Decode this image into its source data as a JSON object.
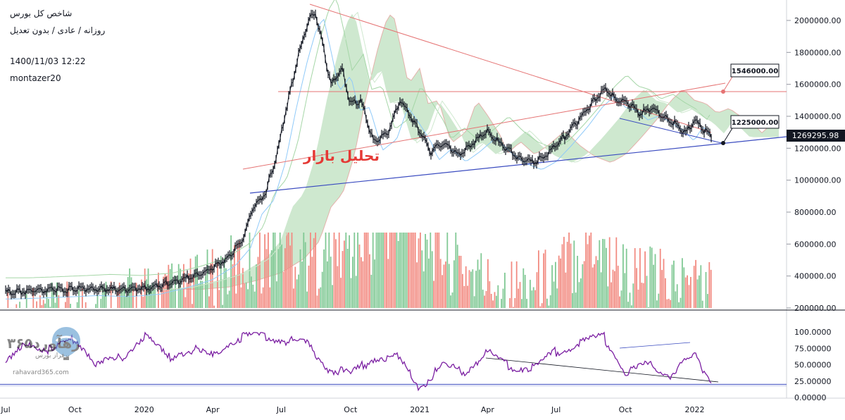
{
  "header": {
    "symbol": "شاخص کل بورس",
    "settings": "روزانه / عادی / بدون تعدیل",
    "datetime": "1400/11/03 12:22",
    "author": "montazer20"
  },
  "annotation": {
    "text": "تحلیل بازار",
    "color": "#e53935"
  },
  "watermark": {
    "name": "رهآورد۳۶۵",
    "tagline": "برفراز بورس",
    "url": "rahavard365.com"
  },
  "colors": {
    "price": "#131722",
    "trendline": "#3b4cc0",
    "resistance": "#e57373",
    "rsi": "#7b1fa2",
    "vol_up": "#81c995",
    "vol_down": "#f28b82",
    "cloud_up": "#a5d6a7",
    "cloud_down": "#f8bbd0"
  },
  "chart_data": [
    {
      "type": "line",
      "name": "price",
      "x": [
        "2019-07-01",
        "2019-08-15",
        "2019-09-20",
        "2019-10-20",
        "2019-12-01",
        "2020-01-10",
        "2020-02-15",
        "2020-03-20",
        "2020-04-20",
        "2020-05-10",
        "2020-05-25",
        "2020-06-10",
        "2020-06-25",
        "2020-07-10",
        "2020-07-25",
        "2020-08-05",
        "2020-08-15",
        "2020-08-25",
        "2020-09-05",
        "2020-09-20",
        "2020-10-01",
        "2020-10-15",
        "2020-11-01",
        "2020-11-20",
        "2020-12-05",
        "2020-12-20",
        "2021-01-05",
        "2021-01-15",
        "2021-02-01",
        "2021-02-20",
        "2021-03-10",
        "2021-04-01",
        "2021-04-20",
        "2021-05-10",
        "2021-06-01",
        "2021-06-20",
        "2021-07-10",
        "2021-08-01",
        "2021-08-20",
        "2021-09-05",
        "2021-09-20",
        "2021-10-05",
        "2021-10-20",
        "2021-11-05",
        "2021-11-20",
        "2021-12-05",
        "2021-12-20",
        "2022-01-01",
        "2022-01-10",
        "2022-01-23"
      ],
      "y": [
        300000,
        308000,
        315000,
        322000,
        315000,
        330000,
        370000,
        420000,
        510000,
        620000,
        830000,
        920000,
        1150000,
        1500000,
        1800000,
        1980000,
        2060000,
        1850000,
        1600000,
        1700000,
        1480000,
        1500000,
        1230000,
        1300000,
        1500000,
        1400000,
        1280000,
        1170000,
        1240000,
        1160000,
        1220000,
        1310000,
        1220000,
        1150000,
        1110000,
        1160000,
        1260000,
        1380000,
        1500000,
        1570000,
        1500000,
        1480000,
        1420000,
        1450000,
        1400000,
        1360000,
        1290000,
        1380000,
        1330000,
        1269295.98
      ]
    },
    {
      "type": "bar",
      "name": "volume",
      "x": [
        "2019-07-01",
        "2019-08-15",
        "2019-10-01",
        "2019-11-15",
        "2020-01-01",
        "2020-02-15",
        "2020-04-01",
        "2020-05-15",
        "2020-07-01",
        "2020-08-15",
        "2020-10-01",
        "2020-11-15",
        "2021-01-01",
        "2021-02-15",
        "2021-04-01",
        "2021-05-15",
        "2021-07-01",
        "2021-08-15",
        "2021-10-01",
        "2021-11-15",
        "2022-01-01",
        "2022-01-23"
      ],
      "values": [
        240000,
        250000,
        260000,
        280000,
        300000,
        310000,
        340000,
        400000,
        460000,
        420000,
        450000,
        560000,
        520000,
        400000,
        330000,
        320000,
        360000,
        480000,
        360000,
        340000,
        330000,
        320000
      ]
    },
    {
      "type": "line",
      "name": "RSI",
      "x": [
        "2019-07-01",
        "2019-08-01",
        "2019-09-01",
        "2019-10-01",
        "2019-11-01",
        "2019-12-01",
        "2020-01-01",
        "2020-02-01",
        "2020-03-01",
        "2020-04-01",
        "2020-05-01",
        "2020-06-01",
        "2020-07-01",
        "2020-08-01",
        "2020-09-01",
        "2020-10-01",
        "2020-11-01",
        "2020-12-01",
        "2021-01-01",
        "2021-02-01",
        "2021-03-01",
        "2021-04-01",
        "2021-05-01",
        "2021-06-01",
        "2021-07-01",
        "2021-08-01",
        "2021-09-01",
        "2021-10-01",
        "2021-11-01",
        "2021-12-01",
        "2022-01-01",
        "2022-01-23"
      ],
      "y": [
        50,
        85,
        70,
        92,
        50,
        60,
        95,
        60,
        75,
        62,
        90,
        95,
        88,
        84,
        45,
        35,
        60,
        62,
        16,
        48,
        40,
        68,
        48,
        45,
        70,
        83,
        95,
        38,
        50,
        35,
        65,
        25
      ],
      "ylim": [
        0,
        100
      ]
    }
  ],
  "axes": {
    "price_ticks": [
      "2000000.00",
      "1800000.00",
      "1600000.00",
      "1400000.00",
      "1200000.00",
      "1000000.00",
      "800000.00",
      "600000.00",
      "400000.00",
      "200000.00"
    ],
    "rsi_ticks": [
      "100.0000",
      "75.00000",
      "50.00000",
      "25.00000",
      "0.00000"
    ],
    "x_labels": [
      "Jul",
      "Oct",
      "2020",
      "Apr",
      "Jul",
      "Oct",
      "2021",
      "Apr",
      "Jul",
      "Oct",
      "2022"
    ]
  },
  "labels": {
    "resistance": "1546000.00",
    "support": "1225000.00",
    "last_price": "1269295.98"
  }
}
